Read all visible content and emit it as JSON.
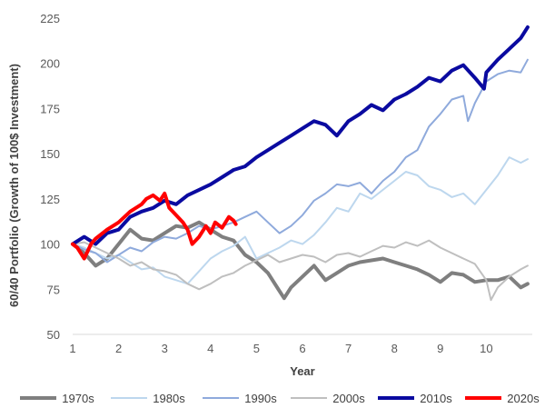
{
  "chart_data": {
    "type": "line",
    "title": "",
    "xlabel": "Year",
    "ylabel": "60/40 Portfolio (Growth of 100$ Investment)",
    "xlim": [
      1,
      11
    ],
    "ylim": [
      50,
      225
    ],
    "x_ticks": [
      "1",
      "2",
      "3",
      "4",
      "5",
      "6",
      "7",
      "8",
      "9",
      "10"
    ],
    "y_ticks": [
      "50",
      "75",
      "100",
      "125",
      "150",
      "175",
      "200",
      "225"
    ],
    "grid": false,
    "legend_position": "bottom",
    "series": [
      {
        "name": "1970s",
        "color": "#7f7f7f",
        "width": 4,
        "x": [
          1,
          1.25,
          1.5,
          1.75,
          2,
          2.25,
          2.5,
          2.75,
          3,
          3.25,
          3.5,
          3.75,
          4,
          4.25,
          4.5,
          4.75,
          5,
          5.25,
          5.5,
          5.6,
          5.75,
          6,
          6.25,
          6.5,
          6.75,
          7,
          7.25,
          7.5,
          7.75,
          8,
          8.25,
          8.5,
          8.75,
          9,
          9.25,
          9.5,
          9.75,
          10,
          10.25,
          10.5,
          10.75,
          10.9
        ],
        "values": [
          100,
          95,
          88,
          92,
          100,
          108,
          103,
          102,
          106,
          110,
          109,
          112,
          108,
          104,
          102,
          94,
          90,
          84,
          74,
          70,
          76,
          82,
          88,
          80,
          84,
          88,
          90,
          91,
          92,
          90,
          88,
          86,
          83,
          79,
          84,
          83,
          79,
          80,
          80,
          82,
          76,
          78
        ]
      },
      {
        "name": "1980s",
        "color": "#bdd7ee",
        "width": 2,
        "x": [
          1,
          1.25,
          1.5,
          1.75,
          2,
          2.25,
          2.5,
          2.75,
          3,
          3.25,
          3.5,
          3.75,
          4,
          4.25,
          4.5,
          4.75,
          5,
          5.25,
          5.5,
          5.75,
          6,
          6.25,
          6.5,
          6.75,
          7,
          7.25,
          7.5,
          7.75,
          8,
          8.25,
          8.5,
          8.75,
          9,
          9.25,
          9.5,
          9.75,
          10,
          10.25,
          10.5,
          10.75,
          10.9
        ],
        "values": [
          100,
          98,
          95,
          92,
          94,
          90,
          86,
          87,
          82,
          80,
          78,
          85,
          92,
          96,
          99,
          104,
          92,
          95,
          98,
          102,
          100,
          105,
          112,
          120,
          118,
          128,
          125,
          130,
          135,
          140,
          138,
          132,
          130,
          126,
          128,
          122,
          130,
          138,
          148,
          145,
          147
        ]
      },
      {
        "name": "1990s",
        "color": "#8faadc",
        "width": 2,
        "x": [
          1,
          1.25,
          1.5,
          1.75,
          2,
          2.25,
          2.5,
          2.75,
          3,
          3.25,
          3.5,
          3.75,
          4,
          4.25,
          4.5,
          4.75,
          5,
          5.25,
          5.5,
          5.75,
          6,
          6.25,
          6.5,
          6.75,
          7,
          7.25,
          7.5,
          7.75,
          8,
          8.25,
          8.5,
          8.75,
          9,
          9.25,
          9.5,
          9.6,
          9.75,
          10,
          10.25,
          10.5,
          10.75,
          10.9
        ],
        "values": [
          100,
          97,
          95,
          90,
          94,
          98,
          96,
          101,
          104,
          103,
          106,
          110,
          108,
          110,
          112,
          115,
          118,
          112,
          106,
          110,
          116,
          124,
          128,
          133,
          132,
          134,
          128,
          135,
          140,
          148,
          152,
          165,
          172,
          180,
          182,
          168,
          178,
          190,
          194,
          196,
          195,
          202
        ]
      },
      {
        "name": "2000s",
        "color": "#bfbfbf",
        "width": 2,
        "x": [
          1,
          1.25,
          1.5,
          1.75,
          2,
          2.25,
          2.5,
          2.75,
          3,
          3.25,
          3.5,
          3.75,
          4,
          4.25,
          4.5,
          4.75,
          5,
          5.25,
          5.5,
          5.75,
          6,
          6.25,
          6.5,
          6.75,
          7,
          7.25,
          7.5,
          7.75,
          8,
          8.25,
          8.5,
          8.75,
          9,
          9.25,
          9.5,
          9.75,
          10,
          10.1,
          10.25,
          10.5,
          10.75,
          10.9
        ],
        "values": [
          100,
          101,
          98,
          95,
          92,
          88,
          90,
          86,
          85,
          83,
          78,
          75,
          78,
          82,
          84,
          88,
          91,
          94,
          90,
          92,
          94,
          93,
          90,
          94,
          95,
          93,
          96,
          99,
          98,
          101,
          99,
          102,
          98,
          95,
          92,
          89,
          80,
          69,
          76,
          82,
          86,
          88
        ]
      },
      {
        "name": "2010s",
        "color": "#0a0aa0",
        "width": 4,
        "x": [
          1,
          1.25,
          1.5,
          1.75,
          2,
          2.25,
          2.5,
          2.75,
          3,
          3.25,
          3.5,
          3.75,
          4,
          4.25,
          4.5,
          4.75,
          5,
          5.25,
          5.5,
          5.75,
          6,
          6.25,
          6.5,
          6.75,
          7,
          7.25,
          7.5,
          7.75,
          8,
          8.25,
          8.5,
          8.75,
          9,
          9.25,
          9.5,
          9.75,
          9.95,
          10,
          10.25,
          10.5,
          10.75,
          10.9
        ],
        "values": [
          100,
          104,
          100,
          106,
          108,
          115,
          118,
          120,
          124,
          122,
          127,
          130,
          133,
          137,
          141,
          143,
          148,
          152,
          156,
          160,
          164,
          168,
          166,
          160,
          168,
          172,
          177,
          174,
          180,
          183,
          187,
          192,
          190,
          196,
          199,
          192,
          186,
          195,
          202,
          208,
          214,
          220
        ]
      },
      {
        "name": "2020s",
        "color": "#ff0000",
        "width": 4,
        "x": [
          1,
          1.1,
          1.25,
          1.4,
          1.5,
          1.75,
          2,
          2.25,
          2.5,
          2.6,
          2.75,
          2.9,
          3,
          3.1,
          3.25,
          3.4,
          3.5,
          3.6,
          3.75,
          3.9,
          4,
          4.1,
          4.25,
          4.4,
          4.5,
          4.55
        ],
        "values": [
          100,
          98,
          92,
          100,
          103,
          108,
          112,
          118,
          122,
          125,
          127,
          124,
          128,
          120,
          116,
          112,
          108,
          100,
          104,
          110,
          106,
          112,
          109,
          115,
          113,
          111
        ]
      }
    ]
  }
}
